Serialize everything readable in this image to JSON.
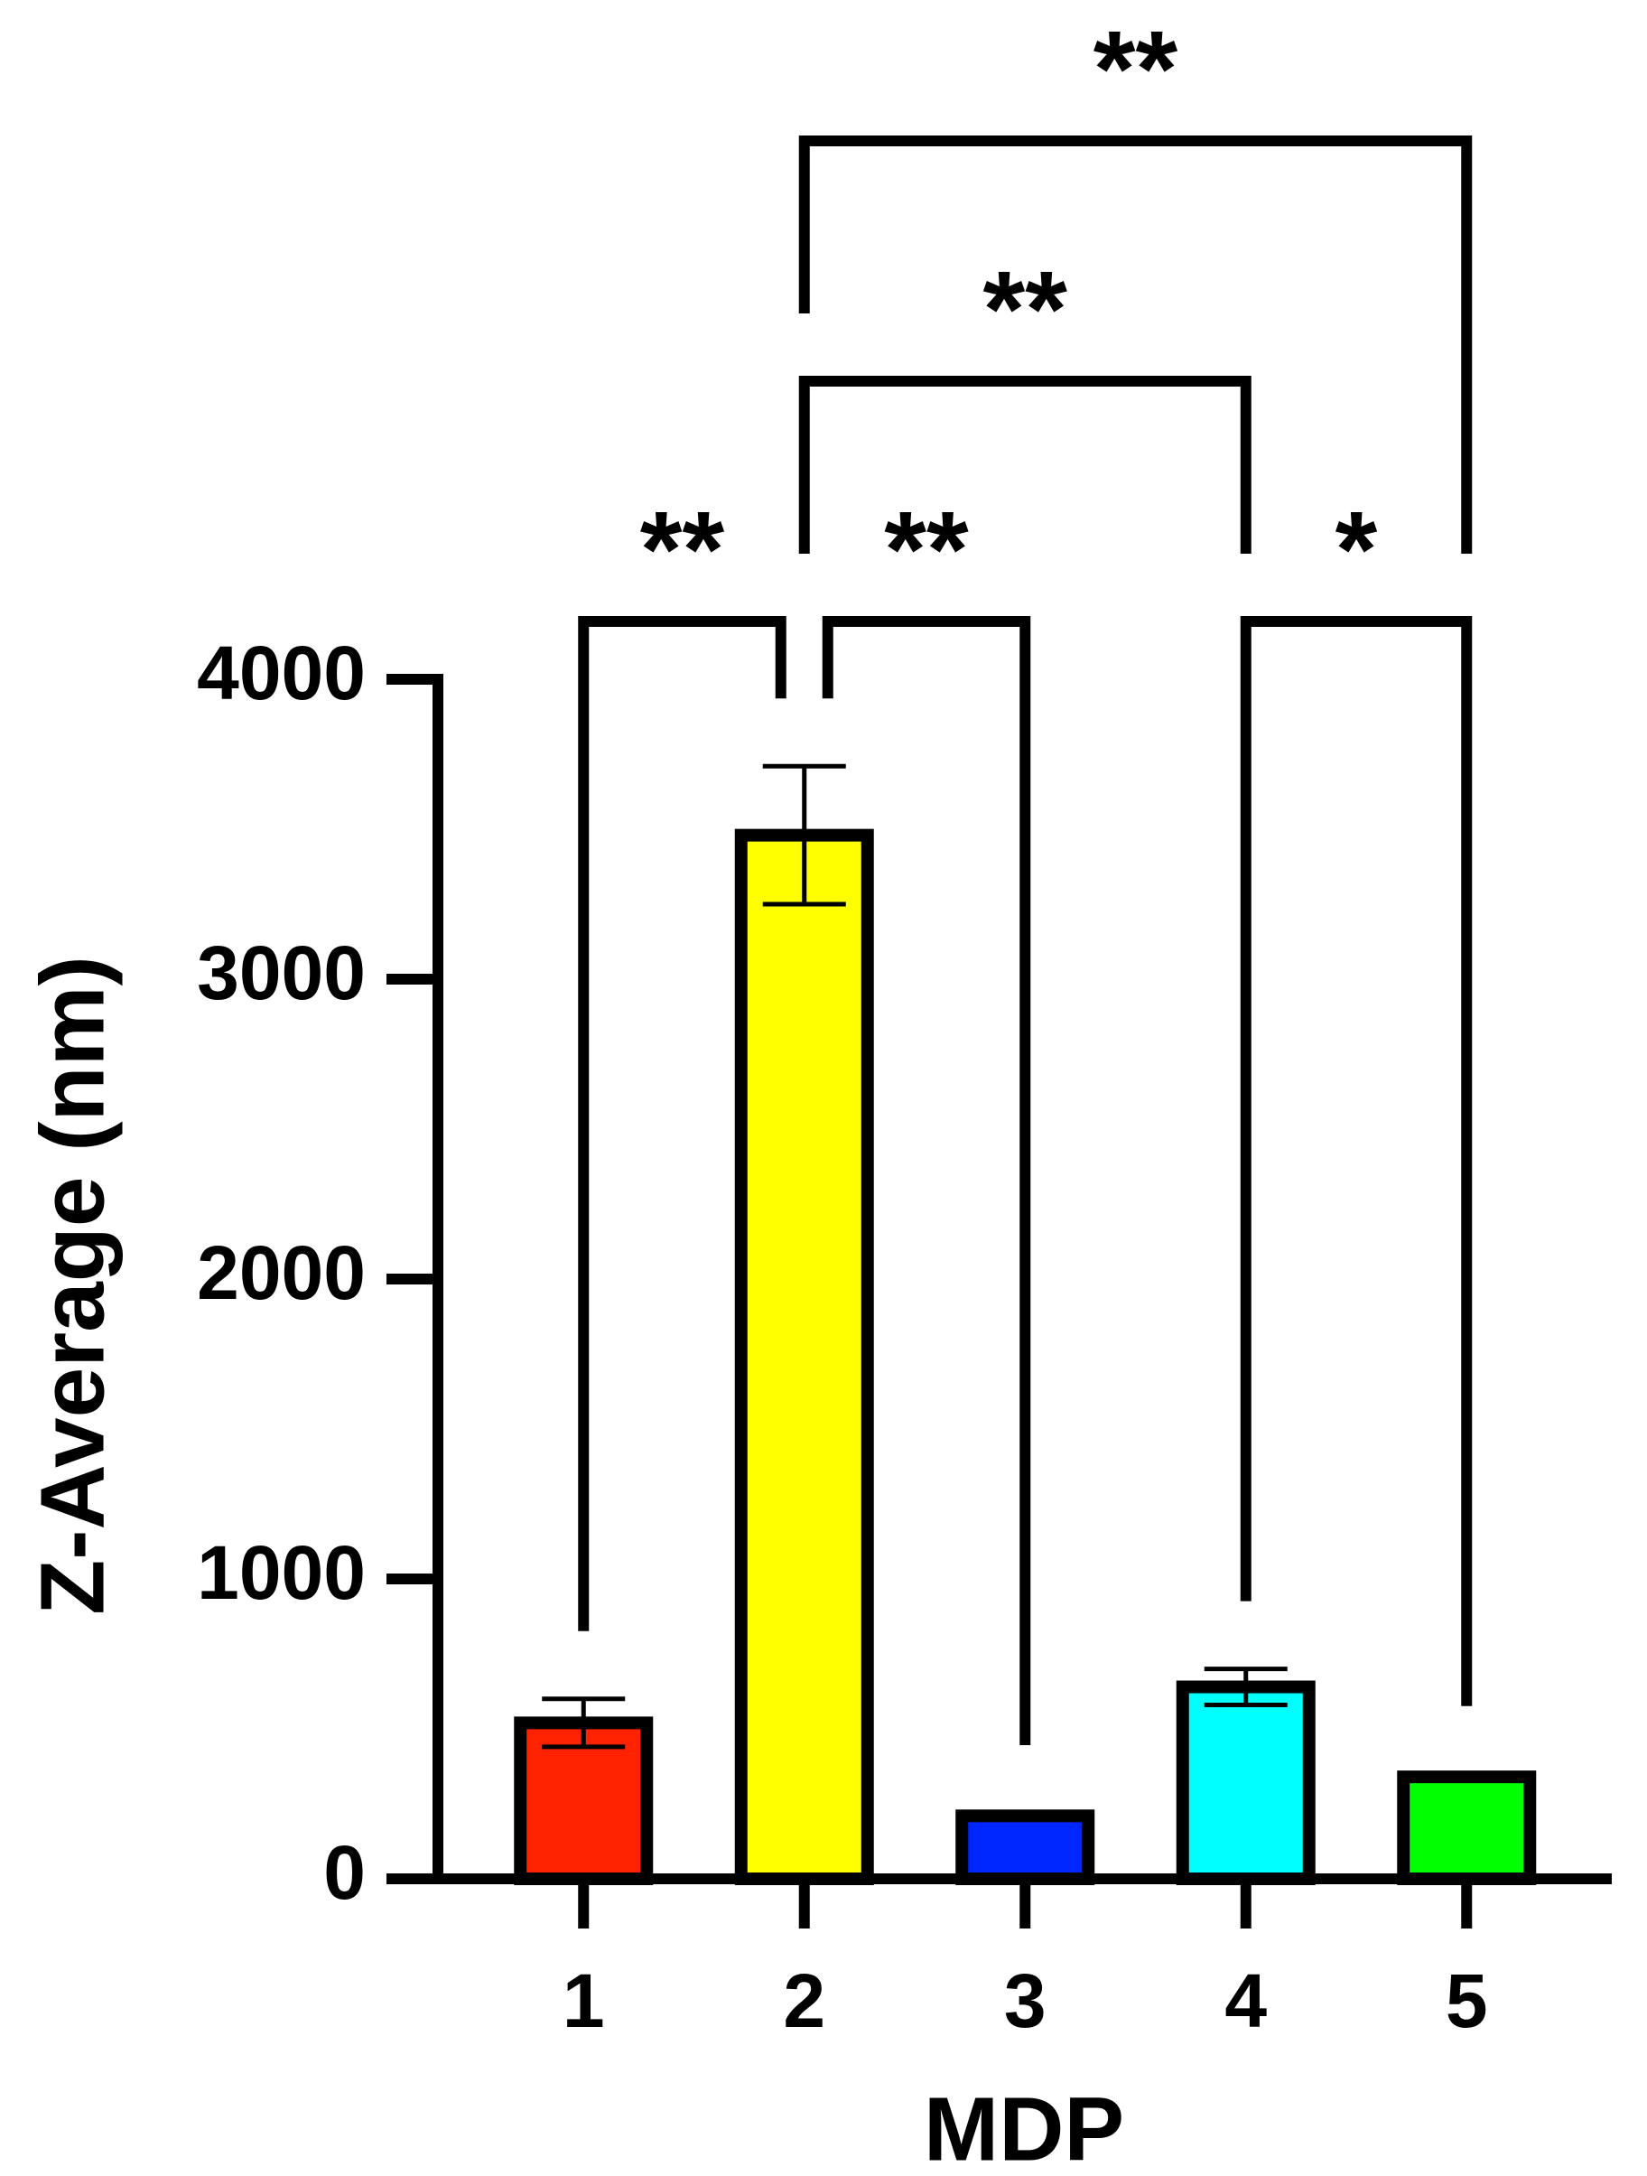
{
  "chart_data": {
    "type": "bar",
    "x_label": "MDP",
    "y_label": "Z-Average (nm)",
    "categories": [
      "1",
      "2",
      "3",
      "4",
      "5"
    ],
    "values": [
      520,
      3480,
      210,
      640,
      340
    ],
    "errors": [
      80,
      230,
      10,
      60,
      10
    ],
    "colors": [
      "#ff2200",
      "#ffff00",
      "#0026ff",
      "#00ffff",
      "#00ff00"
    ],
    "ylim": [
      0,
      4000
    ],
    "yticks": [
      0,
      1000,
      2000,
      3000,
      4000
    ],
    "significance": [
      {
        "between": [
          "1",
          "2"
        ],
        "label": "**"
      },
      {
        "between": [
          "2",
          "3"
        ],
        "label": "**"
      },
      {
        "between": [
          "4",
          "5"
        ],
        "label": "*"
      },
      {
        "between": [
          "2",
          "4"
        ],
        "label": "**"
      },
      {
        "between": [
          "2",
          "5"
        ],
        "label": "**"
      }
    ]
  }
}
